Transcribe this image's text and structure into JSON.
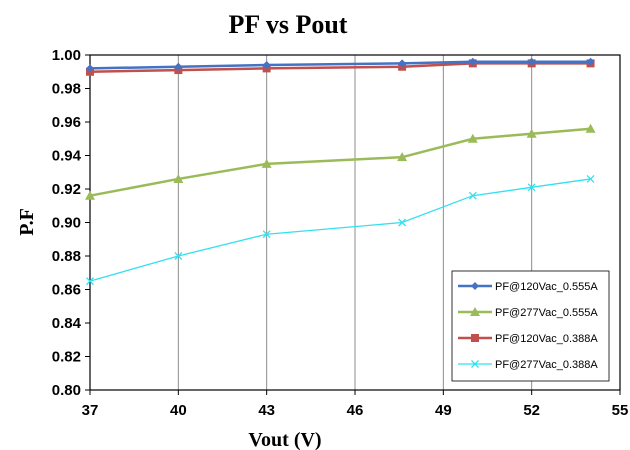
{
  "chart_data": {
    "type": "line",
    "title": "PF vs Pout",
    "xlabel": "Vout (V)",
    "ylabel": "P.F",
    "xlim": [
      37,
      55
    ],
    "ylim": [
      0.8,
      1.0
    ],
    "xticks": [
      "37",
      "40",
      "43",
      "46",
      "49",
      "52",
      "55"
    ],
    "xtick_values": [
      37,
      40,
      43,
      46,
      49,
      52,
      55
    ],
    "yticks": [
      "0.80",
      "0.82",
      "0.84",
      "0.86",
      "0.88",
      "0.90",
      "0.92",
      "0.94",
      "0.96",
      "0.98",
      "1.00"
    ],
    "ytick_values": [
      0.8,
      0.82,
      0.84,
      0.86,
      0.88,
      0.9,
      0.92,
      0.94,
      0.96,
      0.98,
      1.0
    ],
    "grid": "vertical",
    "legend_position": "bottom-right",
    "series": [
      {
        "name": "PF@120Vac_0.555A",
        "color": "#4472C4",
        "marker": "diamond",
        "x": [
          37,
          40,
          43,
          47.6,
          50,
          52,
          54
        ],
        "y": [
          0.992,
          0.993,
          0.994,
          0.995,
          0.996,
          0.996,
          0.996
        ]
      },
      {
        "name": "PF@277Vac_0.555A",
        "color": "#9BBB59",
        "marker": "triangle",
        "x": [
          37,
          40,
          43,
          47.6,
          50,
          52,
          54
        ],
        "y": [
          0.916,
          0.926,
          0.935,
          0.939,
          0.95,
          0.953,
          0.956
        ]
      },
      {
        "name": "PF@120Vac_0.388A",
        "color": "#C0504D",
        "marker": "square",
        "x": [
          37,
          40,
          43,
          47.6,
          50,
          52,
          54
        ],
        "y": [
          0.99,
          0.991,
          0.992,
          0.993,
          0.995,
          0.995,
          0.995
        ]
      },
      {
        "name": "PF@277Vac_0.388A",
        "color": "#33E0F0",
        "marker": "x",
        "x": [
          37,
          40,
          43,
          47.6,
          50,
          52,
          54
        ],
        "y": [
          0.865,
          0.88,
          0.893,
          0.9,
          0.916,
          0.921,
          0.926
        ]
      }
    ]
  }
}
